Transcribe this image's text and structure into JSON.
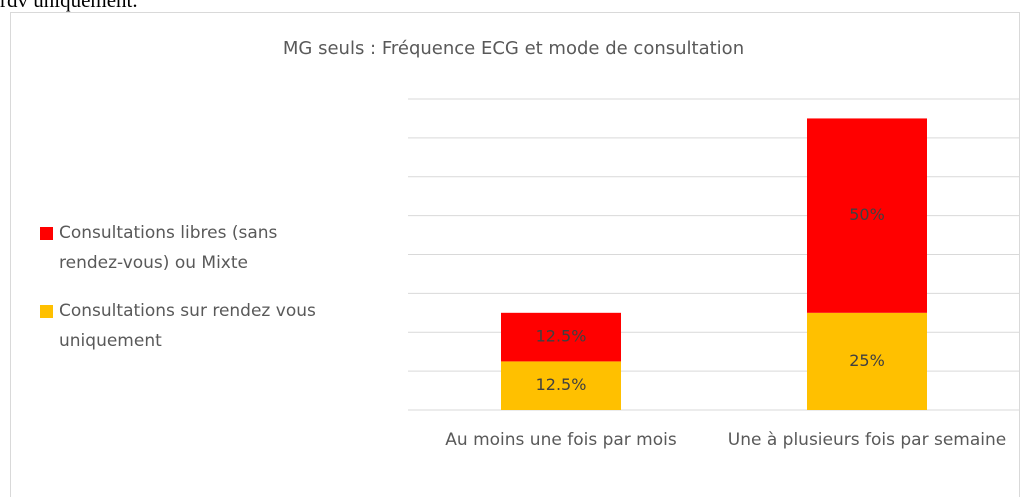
{
  "top_text": "rdv uniquement.",
  "chart_data": {
    "type": "stacked-bar",
    "title": "MG seuls : Fréquence ECG et mode de consultation",
    "categories": [
      "Au moins une fois par mois",
      "Une à plusieurs fois par semaine"
    ],
    "series": [
      {
        "name": "Consultations sur rendez vous uniquement",
        "color": "#ffc000",
        "values": [
          12.5,
          25
        ],
        "value_labels": [
          "12.5%",
          "25%"
        ]
      },
      {
        "name": "Consultations libres (sans rendez-vous) ou Mixte",
        "color": "#ff0000",
        "values": [
          12.5,
          50
        ],
        "value_labels": [
          "12.5%",
          "50%"
        ]
      }
    ],
    "ylim": [
      0,
      80
    ],
    "yticks": [
      0,
      10,
      20,
      30,
      40,
      50,
      60,
      70,
      80
    ],
    "grid": true,
    "legend": "left"
  }
}
